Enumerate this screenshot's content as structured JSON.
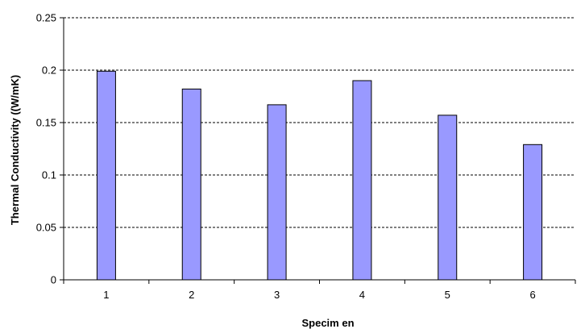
{
  "chart_data": {
    "type": "bar",
    "categories": [
      "1",
      "2",
      "3",
      "4",
      "5",
      "6"
    ],
    "values": [
      0.199,
      0.182,
      0.167,
      0.19,
      0.157,
      0.129
    ],
    "title": "",
    "xlabel": "Specim en",
    "ylabel": "Thermal Conductivity ((W/mK)",
    "ylim": [
      0,
      0.25
    ],
    "yticks": [
      0,
      0.05,
      0.1,
      0.15,
      0.2,
      0.25
    ],
    "ytick_labels": [
      "0",
      "0.05",
      "0.1",
      "0.15",
      "0.2",
      "0.25"
    ],
    "grid": "horizontal dashed",
    "legend": "none",
    "colors": {
      "bar_fill": "#9999ff",
      "bar_stroke": "#000000",
      "gridline": "#000000",
      "axis": "#000000",
      "background": "#ffffff"
    }
  }
}
